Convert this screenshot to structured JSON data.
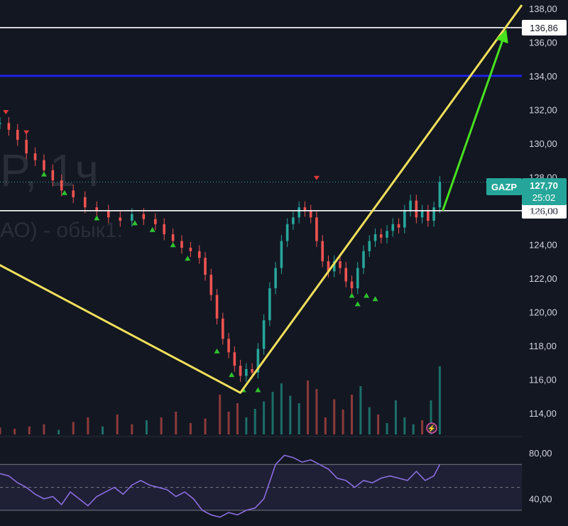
{
  "watermark": {
    "ticker_fragment": "P, 1ч",
    "name_fragment": "АО) - обык1."
  },
  "colors": {
    "background": "#131722",
    "up": "#26a69a",
    "down": "#ef5350",
    "volume_up": "#1c6f68",
    "volume_down": "#8c3a3a",
    "yellow": "#f1e05a",
    "blue": "#1e22e6",
    "green_arrow": "#47e11e",
    "rsi": "#8a6fe0"
  },
  "chart_data": {
    "type": "candlestick",
    "symbol": "GAZP",
    "price_axis": {
      "ticks": [
        114,
        116,
        118,
        120,
        122,
        124,
        126,
        128,
        130,
        132,
        134,
        136,
        138
      ],
      "tick_labels": [
        "114,00",
        "116,00",
        "118,00",
        "120,00",
        "122,00",
        "124,00",
        "126,00",
        "128,00",
        "130,00",
        "132,00",
        "134,00",
        "136,00",
        "138,00"
      ],
      "range": [
        112.6,
        138.5
      ]
    },
    "levels": [
      {
        "name": "resistance",
        "value": 136.86,
        "label": "136,86",
        "color": "#ffffff"
      },
      {
        "name": "support",
        "value": 126.0,
        "label": "126,00",
        "color": "#ffffff"
      },
      {
        "name": "blue-level",
        "value": 134.0,
        "color": "#1e22e6"
      }
    ],
    "last_price": {
      "value": 127.7,
      "label": "127,70",
      "countdown": "25:02",
      "symbol_label": "GAZP"
    },
    "close_path": [
      [
        0,
        131.2
      ],
      [
        6,
        130.8
      ],
      [
        12,
        130.2
      ],
      [
        18,
        129.4
      ],
      [
        24,
        129.0
      ],
      [
        30,
        128.4
      ],
      [
        36,
        127.8
      ],
      [
        42,
        127.2
      ],
      [
        50,
        126.8
      ],
      [
        58,
        126.2
      ],
      [
        66,
        126.0
      ],
      [
        74,
        125.6
      ],
      [
        82,
        125.4
      ],
      [
        90,
        125.8
      ],
      [
        98,
        125.5
      ],
      [
        106,
        125.2
      ],
      [
        112,
        124.6
      ],
      [
        118,
        124.2
      ],
      [
        124,
        123.8
      ],
      [
        130,
        123.6
      ],
      [
        136,
        123.2
      ],
      [
        140,
        122.2
      ],
      [
        144,
        121.0
      ],
      [
        148,
        119.6
      ],
      [
        152,
        118.4
      ],
      [
        156,
        117.6
      ],
      [
        160,
        116.8
      ],
      [
        164,
        116.2
      ],
      [
        168,
        116.6
      ],
      [
        172,
        116.4
      ],
      [
        176,
        117.8
      ],
      [
        180,
        119.5
      ],
      [
        184,
        121.4
      ],
      [
        188,
        122.6
      ],
      [
        192,
        124.2
      ],
      [
        196,
        125.2
      ],
      [
        200,
        125.6
      ],
      [
        204,
        126.2
      ],
      [
        208,
        126.0
      ],
      [
        212,
        125.6
      ],
      [
        216,
        124.2
      ],
      [
        220,
        123.0
      ],
      [
        224,
        122.4
      ],
      [
        228,
        123.0
      ],
      [
        232,
        122.6
      ],
      [
        236,
        121.8
      ],
      [
        240,
        121.4
      ],
      [
        244,
        122.6
      ],
      [
        248,
        123.6
      ],
      [
        252,
        124.2
      ],
      [
        256,
        124.6
      ],
      [
        260,
        124.4
      ],
      [
        264,
        124.8
      ],
      [
        268,
        125.2
      ],
      [
        272,
        125.0
      ],
      [
        276,
        126.0
      ],
      [
        280,
        126.6
      ],
      [
        284,
        125.6
      ],
      [
        288,
        126.0
      ],
      [
        292,
        125.4
      ],
      [
        296,
        126.2
      ],
      [
        300,
        127.7
      ]
    ],
    "volume_scale_max": 100,
    "volume": [
      [
        0,
        12,
        "d"
      ],
      [
        10,
        10,
        "d"
      ],
      [
        20,
        14,
        "d"
      ],
      [
        30,
        18,
        "d"
      ],
      [
        40,
        8,
        "u"
      ],
      [
        50,
        22,
        "d"
      ],
      [
        60,
        30,
        "d"
      ],
      [
        70,
        14,
        "u"
      ],
      [
        80,
        35,
        "d"
      ],
      [
        90,
        18,
        "d"
      ],
      [
        100,
        25,
        "u"
      ],
      [
        110,
        30,
        "d"
      ],
      [
        120,
        40,
        "d"
      ],
      [
        130,
        20,
        "d"
      ],
      [
        140,
        28,
        "d"
      ],
      [
        150,
        70,
        "d"
      ],
      [
        156,
        40,
        "d"
      ],
      [
        162,
        55,
        "d"
      ],
      [
        168,
        30,
        "u"
      ],
      [
        174,
        45,
        "u"
      ],
      [
        180,
        58,
        "u"
      ],
      [
        186,
        75,
        "u"
      ],
      [
        192,
        90,
        "u"
      ],
      [
        198,
        68,
        "u"
      ],
      [
        204,
        55,
        "u"
      ],
      [
        210,
        95,
        "d"
      ],
      [
        216,
        80,
        "d"
      ],
      [
        222,
        30,
        "d"
      ],
      [
        228,
        62,
        "d"
      ],
      [
        234,
        44,
        "d"
      ],
      [
        240,
        70,
        "d"
      ],
      [
        246,
        85,
        "u"
      ],
      [
        252,
        48,
        "u"
      ],
      [
        258,
        35,
        "d"
      ],
      [
        264,
        20,
        "u"
      ],
      [
        270,
        60,
        "u"
      ],
      [
        276,
        30,
        "u"
      ],
      [
        282,
        18,
        "u"
      ],
      [
        288,
        25,
        "d"
      ],
      [
        294,
        60,
        "u"
      ],
      [
        300,
        120,
        "u"
      ]
    ],
    "markers": {
      "down": [
        [
          4,
          131.8
        ],
        [
          18,
          130.6
        ],
        [
          216,
          127.9
        ]
      ],
      "up": [
        [
          30,
          128.2
        ],
        [
          44,
          127.1
        ],
        [
          66,
          125.6
        ],
        [
          92,
          125.3
        ],
        [
          104,
          124.9
        ],
        [
          118,
          124.0
        ],
        [
          128,
          123.2
        ],
        [
          148,
          117.7
        ],
        [
          158,
          116.3
        ],
        [
          166,
          115.4
        ],
        [
          176,
          115.4
        ],
        [
          240,
          121.0
        ],
        [
          244,
          120.5
        ],
        [
          250,
          121.0
        ],
        [
          256,
          120.8
        ]
      ]
    },
    "trend_lines": [
      {
        "name": "yellow-v",
        "color": "#f1e05a",
        "points": [
          [
            -5,
            123.0
          ],
          [
            164,
            115.2
          ],
          [
            356,
            138.2
          ]
        ]
      },
      {
        "name": "green-target-arrow",
        "color": "#47e11e",
        "points": [
          [
            302,
            126.0
          ],
          [
            344,
            136.4
          ]
        ]
      }
    ],
    "rsi": {
      "ticks": [
        40,
        80
      ],
      "tick_labels": [
        "40,00",
        "80,00"
      ],
      "range": [
        20,
        90
      ],
      "band_upper": 70,
      "band_lower": 30,
      "mid": 50,
      "values": [
        [
          0,
          62
        ],
        [
          6,
          60
        ],
        [
          12,
          54
        ],
        [
          18,
          50
        ],
        [
          24,
          44
        ],
        [
          30,
          40
        ],
        [
          36,
          42
        ],
        [
          42,
          35
        ],
        [
          48,
          46
        ],
        [
          54,
          40
        ],
        [
          60,
          34
        ],
        [
          66,
          42
        ],
        [
          72,
          46
        ],
        [
          78,
          50
        ],
        [
          84,
          44
        ],
        [
          90,
          52
        ],
        [
          96,
          56
        ],
        [
          102,
          52
        ],
        [
          108,
          50
        ],
        [
          114,
          48
        ],
        [
          120,
          42
        ],
        [
          126,
          46
        ],
        [
          132,
          40
        ],
        [
          138,
          30
        ],
        [
          144,
          26
        ],
        [
          150,
          24
        ],
        [
          156,
          28
        ],
        [
          162,
          26
        ],
        [
          168,
          30
        ],
        [
          174,
          32
        ],
        [
          180,
          40
        ],
        [
          184,
          55
        ],
        [
          188,
          70
        ],
        [
          194,
          78
        ],
        [
          200,
          76
        ],
        [
          206,
          72
        ],
        [
          212,
          74
        ],
        [
          218,
          70
        ],
        [
          224,
          66
        ],
        [
          230,
          58
        ],
        [
          236,
          56
        ],
        [
          242,
          50
        ],
        [
          248,
          56
        ],
        [
          254,
          54
        ],
        [
          260,
          58
        ],
        [
          266,
          60
        ],
        [
          272,
          58
        ],
        [
          278,
          56
        ],
        [
          284,
          64
        ],
        [
          290,
          56
        ],
        [
          296,
          60
        ],
        [
          300,
          70
        ]
      ]
    }
  }
}
